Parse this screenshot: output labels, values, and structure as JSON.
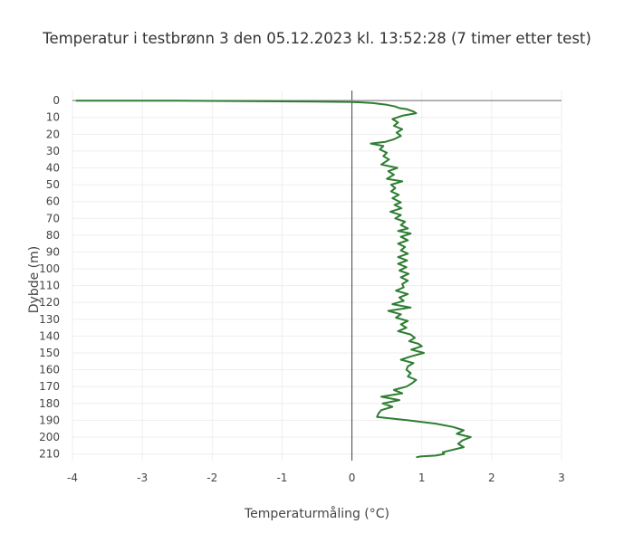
{
  "chart_data": {
    "type": "line",
    "title": "Temperatur i testbrønn 3 den 05.12.2023 kl. 13:52:28 (7 timer etter test)",
    "xlabel": "Temperaturmåling (°C)",
    "ylabel": "Dybde (m)",
    "xlim": [
      -4,
      3
    ],
    "ylim": [
      214,
      -6
    ],
    "y_reversed": true,
    "grid": true,
    "zero_lines": true,
    "x_ticks": [
      -4,
      -3,
      -2,
      -1,
      0,
      1,
      2,
      3
    ],
    "y_ticks": [
      0,
      10,
      20,
      30,
      40,
      50,
      60,
      70,
      80,
      90,
      100,
      110,
      120,
      130,
      140,
      150,
      160,
      170,
      180,
      190,
      200,
      210
    ],
    "colors": {
      "line": "#2e7d32",
      "grid": "#eeeeee",
      "zero": "#444444"
    },
    "series": [
      {
        "x": [
          -3.95,
          -2.5,
          -1.5,
          -0.5,
          -0.05,
          0.1,
          0.3,
          0.5,
          0.62,
          0.68,
          0.78,
          0.88,
          0.92,
          0.72,
          0.58,
          0.66,
          0.6,
          0.72,
          0.64,
          0.7,
          0.6,
          0.48,
          0.27,
          0.45,
          0.4,
          0.5,
          0.45,
          0.53,
          0.42,
          0.65,
          0.52,
          0.6,
          0.5,
          0.72,
          0.56,
          0.62,
          0.56,
          0.67,
          0.58,
          0.7,
          0.61,
          0.71,
          0.55,
          0.7,
          0.62,
          0.76,
          0.7,
          0.8,
          0.66,
          0.84,
          0.7,
          0.8,
          0.66,
          0.76,
          0.7,
          0.8,
          0.66,
          0.79,
          0.66,
          0.78,
          0.68,
          0.81,
          0.7,
          0.8,
          0.72,
          0.74,
          0.63,
          0.8,
          0.68,
          0.74,
          0.58,
          0.84,
          0.52,
          0.7,
          0.63,
          0.8,
          0.7,
          0.78,
          0.66,
          0.84,
          0.9,
          0.82,
          0.95,
          1.0,
          0.85,
          1.03,
          0.85,
          0.7,
          0.88,
          0.8,
          0.78,
          0.84,
          0.8,
          0.92,
          0.86,
          0.78,
          0.6,
          0.72,
          0.42,
          0.68,
          0.44,
          0.58,
          0.42,
          0.38,
          0.36,
          0.8,
          1.2,
          1.45,
          1.6,
          1.5,
          1.7,
          1.58,
          1.52,
          1.6,
          1.4,
          1.3,
          1.32,
          1.2,
          0.98,
          0.92
        ],
        "y": [
          0,
          0.1,
          0.3,
          0.6,
          0.8,
          1.0,
          1.5,
          2.5,
          3.5,
          4.5,
          5.0,
          6.5,
          7.5,
          9.0,
          11.0,
          13.0,
          15.0,
          17.0,
          19.0,
          21.0,
          23.0,
          24.5,
          25.5,
          27.0,
          29.0,
          31.0,
          33.0,
          35.0,
          38.0,
          40.0,
          42.0,
          44.0,
          46.5,
          48.0,
          50.0,
          52.0,
          54.0,
          56.0,
          58.0,
          60.5,
          62.0,
          64.0,
          66.0,
          68.0,
          70.0,
          72.0,
          74.0,
          76.0,
          77.5,
          79.0,
          81.0,
          83.0,
          85.0,
          87.0,
          89.0,
          91.0,
          93.0,
          95.0,
          97.0,
          99.0,
          101.0,
          103.0,
          105.0,
          107.0,
          109.0,
          111.0,
          113.0,
          115.0,
          117.0,
          119.0,
          121.0,
          123.0,
          125.0,
          127.0,
          129.0,
          131.0,
          133.0,
          135.0,
          137.0,
          139.0,
          141.0,
          143.0,
          144.5,
          146.0,
          148.0,
          150.0,
          152.0,
          154.0,
          156.0,
          158.0,
          160.0,
          162.0,
          164.0,
          166.0,
          168.0,
          170.0,
          172.0,
          174.0,
          176.0,
          178.0,
          180.0,
          182.0,
          184.0,
          186.0,
          188.0,
          190.0,
          192.0,
          194.0,
          196.0,
          198.0,
          200.0,
          202.0,
          204.0,
          206.0,
          208.0,
          209.0,
          210.0,
          211.0,
          211.5,
          212.0
        ]
      }
    ]
  }
}
